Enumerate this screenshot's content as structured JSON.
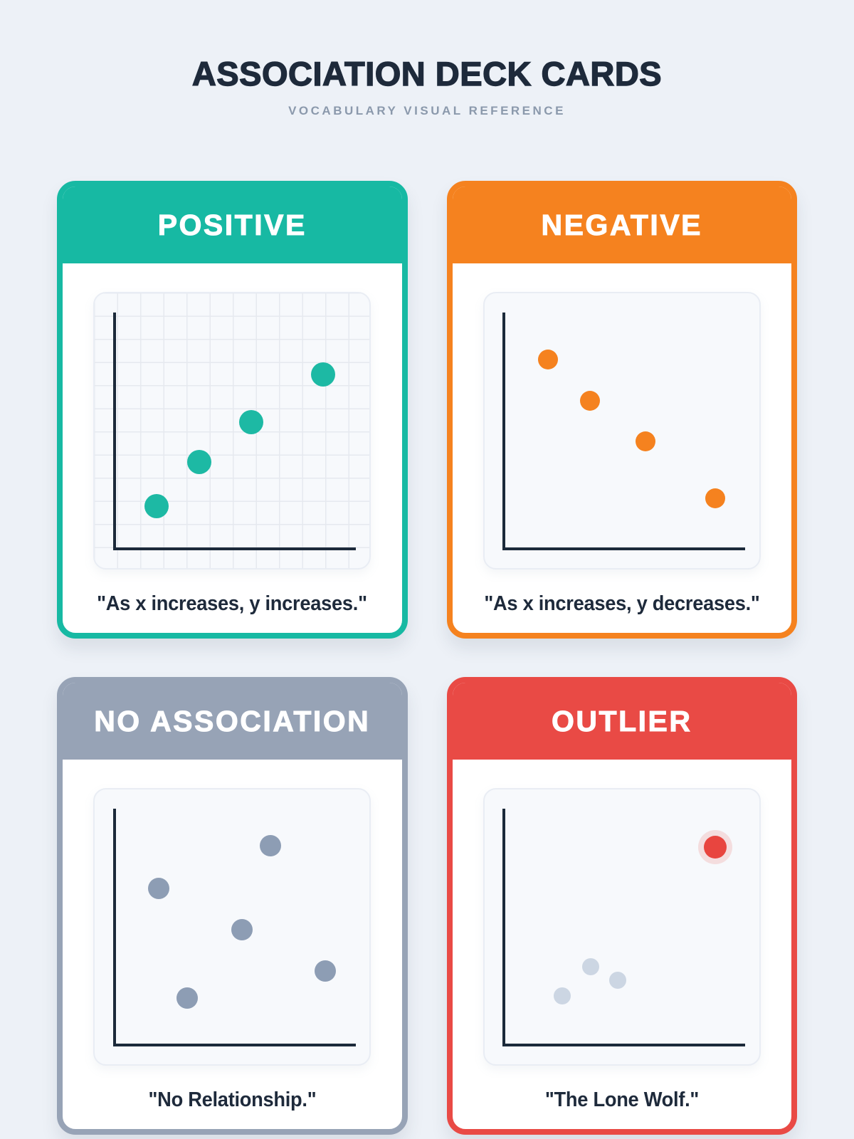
{
  "page": {
    "title": "ASSOCIATION DECK CARDS",
    "subtitle": "VOCABULARY VISUAL REFERENCE",
    "colors": {
      "background": "#edf1f7",
      "heading_text": "#1e2a3b",
      "subtitle_text": "#8b99ac",
      "axis": "#1c2a3a",
      "plot_panel": "#f7f9fc",
      "grid_line": "#e6e9ef"
    }
  },
  "cards": [
    {
      "label": "POSITIVE",
      "caption": "\"As x increases, y increases.\"",
      "accent": "#17b9a3",
      "dot_color": "#1db9a4",
      "dot_radius": 17,
      "grid": true,
      "trend": "ascending",
      "points": [
        {
          "x": 0.225,
          "y": 0.775
        },
        {
          "x": 0.38,
          "y": 0.615
        },
        {
          "x": 0.57,
          "y": 0.47
        },
        {
          "x": 0.83,
          "y": 0.295
        }
      ]
    },
    {
      "label": "NEGATIVE",
      "caption": "\"As x increases, y decreases.\"",
      "accent": "#f5821f",
      "dot_color": "#f5821f",
      "dot_radius": 14,
      "grid": false,
      "trend": "descending",
      "points": [
        {
          "x": 0.23,
          "y": 0.24
        },
        {
          "x": 0.385,
          "y": 0.39
        },
        {
          "x": 0.585,
          "y": 0.54
        },
        {
          "x": 0.84,
          "y": 0.745
        }
      ]
    },
    {
      "label": "NO ASSOCIATION",
      "caption": "\"No Relationship.\"",
      "accent": "#97a3b6",
      "dot_color": "#8d9db4",
      "dot_radius": 15,
      "grid": false,
      "trend": "random",
      "points": [
        {
          "x": 0.638,
          "y": 0.205
        },
        {
          "x": 0.233,
          "y": 0.36
        },
        {
          "x": 0.536,
          "y": 0.51
        },
        {
          "x": 0.838,
          "y": 0.66
        },
        {
          "x": 0.336,
          "y": 0.76
        }
      ]
    },
    {
      "label": "OUTLIER",
      "caption": "\"The Lone Wolf.\"",
      "accent": "#e94a45",
      "dot_color": "#ccd6e3",
      "dot_radius": 12,
      "grid": false,
      "trend": "cluster-with-outlier",
      "points": [
        {
          "x": 0.84,
          "y": 0.21,
          "r": 16,
          "color": "#e8453f",
          "halo": true
        },
        {
          "x": 0.387,
          "y": 0.645
        },
        {
          "x": 0.485,
          "y": 0.695
        },
        {
          "x": 0.282,
          "y": 0.75
        }
      ]
    }
  ]
}
